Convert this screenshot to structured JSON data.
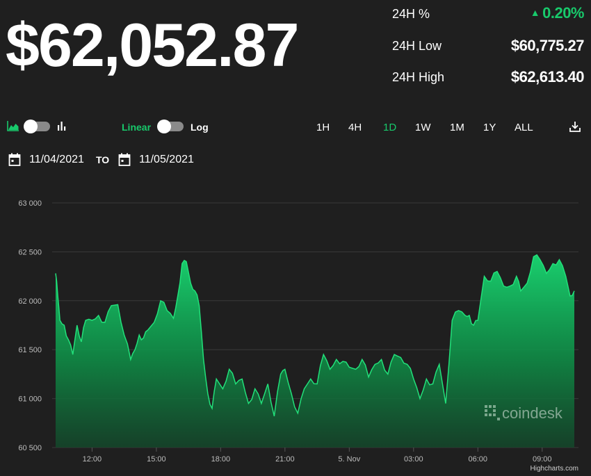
{
  "header": {
    "price": "$62,052.87",
    "stats": [
      {
        "label": "24H %",
        "value": "0.20%",
        "trend": "up"
      },
      {
        "label": "24H Low",
        "value": "$60,775.27"
      },
      {
        "label": "24H High",
        "value": "$62,613.40"
      }
    ]
  },
  "controls": {
    "scale_linear": "Linear",
    "scale_log": "Log",
    "ranges": [
      "1H",
      "4H",
      "1D",
      "1W",
      "1M",
      "1Y",
      "ALL"
    ],
    "active_range": "1D"
  },
  "date_range": {
    "from": "11/04/2021",
    "to_label": "TO",
    "to": "11/05/2021"
  },
  "colors": {
    "accent": "#18c96b",
    "background": "#1f1f1f",
    "grid": "#3a3a3a"
  },
  "watermark": "coindesk",
  "credits": "Highcharts.com",
  "chart_data": {
    "type": "area",
    "y_ticks": [
      60500,
      61000,
      61500,
      62000,
      62500,
      63000
    ],
    "y_tick_labels": [
      "60 500",
      "61 000",
      "61 500",
      "62 000",
      "62 500",
      "63 000"
    ],
    "ylim": [
      60500,
      63000
    ],
    "x_ticks": [
      12,
      15,
      18,
      21,
      24,
      27,
      30,
      33
    ],
    "x_tick_labels": [
      "12:00",
      "15:00",
      "18:00",
      "21:00",
      "5. Nov",
      "03:00",
      "06:00",
      "09:00"
    ],
    "xlim": [
      10.3,
      34.5
    ],
    "grid": true,
    "x": [
      10.3,
      10.4,
      10.5,
      10.7,
      10.9,
      11.1,
      11.3,
      11.5,
      11.7,
      12.0,
      12.3,
      12.6,
      12.9,
      13.2,
      13.5,
      13.8,
      14.0,
      14.2,
      14.4,
      14.6,
      14.9,
      15.2,
      15.5,
      15.8,
      16.0,
      16.2,
      16.4,
      16.6,
      16.8,
      17.0,
      17.2,
      17.4,
      17.6,
      17.8,
      18.1,
      18.4,
      18.7,
      19.0,
      19.3,
      19.6,
      19.9,
      20.2,
      20.5,
      20.8,
      21.0,
      21.3,
      21.6,
      21.9,
      22.2,
      22.5,
      22.8,
      23.1,
      23.4,
      23.7,
      24.0,
      24.3,
      24.6,
      24.9,
      25.2,
      25.5,
      25.8,
      26.1,
      26.4,
      26.7,
      27.0,
      27.3,
      27.6,
      27.9,
      28.2,
      28.5,
      28.8,
      29.1,
      29.4,
      29.6,
      29.8,
      30.0,
      30.3,
      30.6,
      30.9,
      31.2,
      31.5,
      31.8,
      32.0,
      32.3,
      32.6,
      32.9,
      33.2,
      33.5,
      33.8,
      34.1,
      34.3,
      34.5
    ],
    "values": [
      62280,
      62050,
      61800,
      61750,
      61600,
      61450,
      61750,
      61580,
      61800,
      61800,
      61850,
      61780,
      61950,
      61960,
      61650,
      61400,
      61500,
      61650,
      61620,
      61700,
      61780,
      62000,
      61900,
      61820,
      62050,
      62380,
      62400,
      62180,
      62100,
      61950,
      61400,
      61050,
      60900,
      61200,
      61100,
      61300,
      61150,
      61200,
      60950,
      61100,
      60950,
      61150,
      60820,
      61250,
      61300,
      61050,
      60850,
      61100,
      61200,
      61150,
      61450,
      61300,
      61400,
      61380,
      61320,
      61300,
      61400,
      61220,
      61350,
      61400,
      61250,
      61450,
      61420,
      61350,
      61200,
      61000,
      61200,
      61150,
      61350,
      60950,
      61800,
      61900,
      61850,
      61850,
      61750,
      61800,
      62250,
      62200,
      62300,
      62150,
      62150,
      62250,
      62100,
      62180,
      62450,
      62420,
      62280,
      62380,
      62420,
      62250,
      62050,
      62100
    ]
  }
}
